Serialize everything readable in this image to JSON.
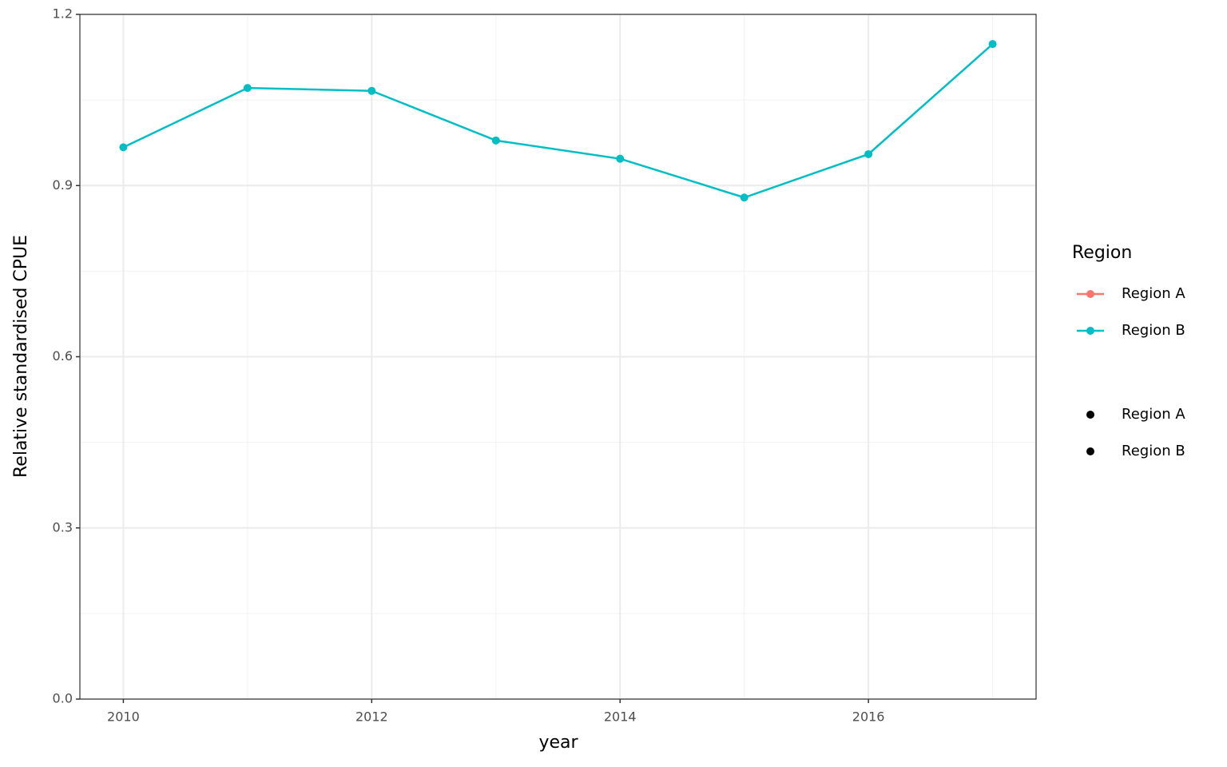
{
  "chart_data": {
    "type": "line",
    "x_label": "year",
    "y_label": "Relative standardised CPUE",
    "legend_title": "Region",
    "x": [
      2010,
      2011,
      2012,
      2013,
      2014,
      2015,
      2016,
      2017
    ],
    "series": [
      {
        "name": "Region A",
        "color": "#F8766D",
        "values": [
          null,
          null,
          null,
          null,
          null,
          null,
          null,
          null
        ]
      },
      {
        "name": "Region B",
        "color": "#00BFC4",
        "values": [
          0.967,
          1.071,
          1.066,
          0.979,
          0.947,
          0.879,
          0.955,
          1.148
        ]
      }
    ],
    "shape_legend": {
      "color": "#000000",
      "labels": [
        "Region A",
        "Region B"
      ]
    },
    "xlim": [
      2009.65,
      2017.35
    ],
    "xticks": [
      2010,
      2012,
      2014,
      2016
    ],
    "ylim": [
      0,
      1.2
    ],
    "yticks": [
      {
        "value": 0,
        "label": "0.0"
      },
      0.3,
      0.6,
      0.9,
      1.2
    ],
    "grid": true,
    "legend": "right"
  }
}
